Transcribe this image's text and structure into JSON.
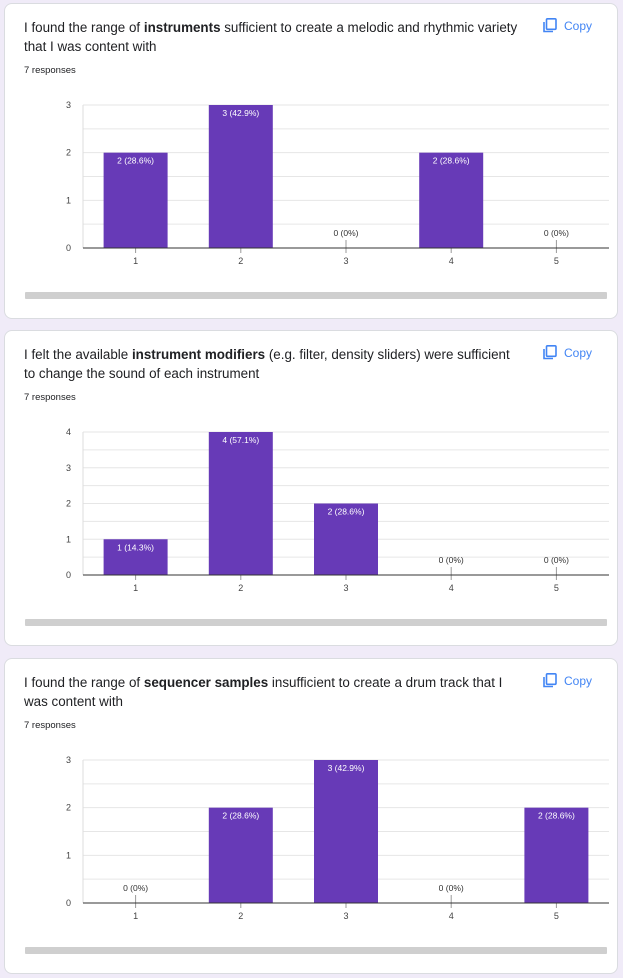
{
  "copy_label": "Copy",
  "colors": {
    "bar": "#673ab7",
    "grid": "#e6e6e6",
    "axis": "#333333",
    "accent": "#4285f4"
  },
  "questions": [
    {
      "title_parts": [
        "I found the range of ",
        "instruments",
        " sufficient to create a melodic and rhythmic variety that I was content with"
      ],
      "responses": "7 responses"
    },
    {
      "title_parts": [
        "I felt the available ",
        "instrument modifiers",
        " (e.g. filter, density sliders) were sufficient to change the sound of each instrument"
      ],
      "responses": "7 responses"
    },
    {
      "title_parts": [
        "I found the range of ",
        "sequencer samples",
        " insufficient to create a drum track that I was content with"
      ],
      "responses": "7 responses"
    }
  ],
  "chart_data": [
    {
      "type": "bar",
      "categories": [
        "1",
        "2",
        "3",
        "4",
        "5"
      ],
      "values": [
        2,
        3,
        0,
        2,
        0
      ],
      "labels": [
        "2 (28.6%)",
        "3 (42.9%)",
        "0 (0%)",
        "2 (28.6%)",
        "0 (0%)"
      ],
      "yticks": [
        "0",
        "1",
        "2",
        "3"
      ],
      "ylim": [
        0,
        3
      ],
      "grid": true
    },
    {
      "type": "bar",
      "categories": [
        "1",
        "2",
        "3",
        "4",
        "5"
      ],
      "values": [
        1,
        4,
        2,
        0,
        0
      ],
      "labels": [
        "1 (14.3%)",
        "4 (57.1%)",
        "2 (28.6%)",
        "0 (0%)",
        "0 (0%)"
      ],
      "yticks": [
        "0",
        "1",
        "2",
        "3",
        "4"
      ],
      "ylim": [
        0,
        4
      ],
      "grid": true
    },
    {
      "type": "bar",
      "categories": [
        "1",
        "2",
        "3",
        "4",
        "5"
      ],
      "values": [
        0,
        2,
        3,
        0,
        2
      ],
      "labels": [
        "0 (0%)",
        "2 (28.6%)",
        "3 (42.9%)",
        "0 (0%)",
        "2 (28.6%)"
      ],
      "yticks": [
        "0",
        "1",
        "2",
        "3"
      ],
      "ylim": [
        0,
        3
      ],
      "grid": true
    }
  ]
}
